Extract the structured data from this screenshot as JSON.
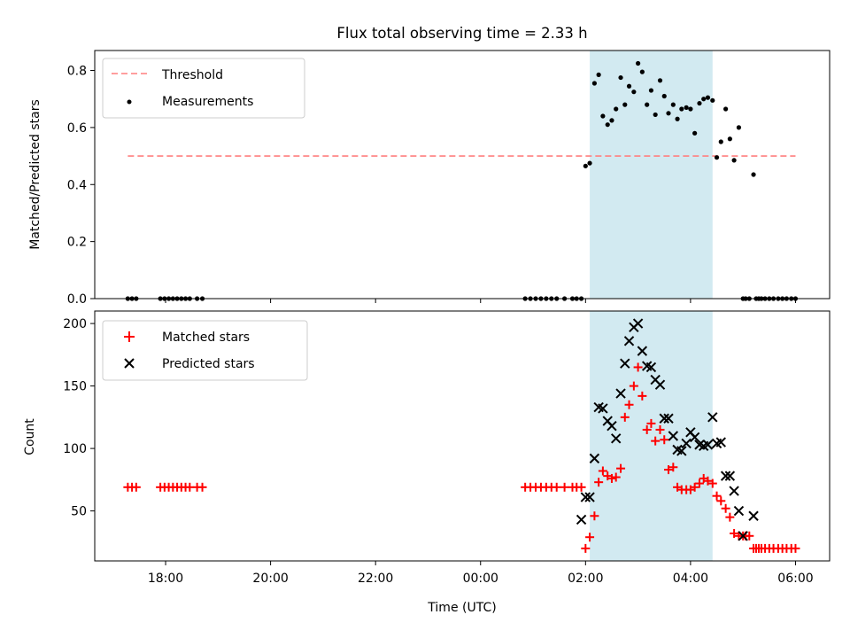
{
  "title": "Flux total observing time = 2.33 h",
  "colors": {
    "shade": "#add8e6",
    "threshold": "#ff7f7f",
    "measurements": "#000000",
    "matched": "#ff0000",
    "predicted": "#000000"
  },
  "chart_data": [
    {
      "type": "scatter",
      "panel": "top",
      "xlabel": "",
      "ylabel": "Matched/Predicted stars",
      "xlim_hours": [
        16.65,
        30.65
      ],
      "ylim": [
        0,
        0.87
      ],
      "yticks": [
        0.0,
        0.2,
        0.4,
        0.6,
        0.8
      ],
      "ytick_labels": [
        "0.0",
        "0.2",
        "0.4",
        "0.6",
        "0.8"
      ],
      "shaded_interval_hours": [
        26.08,
        28.42
      ],
      "legend": {
        "position": "upper-left",
        "entries": [
          "Threshold",
          "Measurements"
        ]
      },
      "threshold": {
        "name": "Threshold",
        "y": 0.5,
        "x_hours": [
          17.28,
          30.0
        ]
      },
      "series": [
        {
          "name": "Measurements",
          "marker": "dot",
          "x_hours": [
            17.28,
            17.36,
            17.44,
            17.9,
            17.98,
            18.06,
            18.14,
            18.22,
            18.3,
            18.38,
            18.46,
            18.6,
            18.7,
            24.85,
            24.95,
            25.05,
            25.15,
            25.25,
            25.35,
            25.45,
            25.6,
            25.75,
            25.83,
            25.92,
            26.0,
            26.08,
            26.17,
            26.25,
            26.33,
            26.42,
            26.5,
            26.58,
            26.67,
            26.75,
            26.83,
            26.92,
            27.0,
            27.08,
            27.17,
            27.25,
            27.33,
            27.42,
            27.5,
            27.58,
            27.67,
            27.75,
            27.83,
            27.92,
            28.0,
            28.08,
            28.17,
            28.25,
            28.33,
            28.42,
            28.5,
            28.58,
            28.67,
            28.75,
            28.83,
            28.92,
            29.0,
            29.05,
            29.12,
            29.2,
            29.25,
            29.3,
            29.35,
            29.42,
            29.5,
            29.58,
            29.67,
            29.75,
            29.83,
            29.92,
            30.0
          ],
          "y": [
            0,
            0,
            0,
            0,
            0,
            0,
            0,
            0,
            0,
            0,
            0,
            0,
            0,
            0,
            0,
            0,
            0,
            0,
            0,
            0,
            0,
            0,
            0,
            0,
            0.465,
            0.475,
            0.755,
            0.785,
            0.64,
            0.61,
            0.625,
            0.665,
            0.775,
            0.68,
            0.745,
            0.725,
            0.825,
            0.795,
            0.68,
            0.73,
            0.645,
            0.765,
            0.71,
            0.65,
            0.68,
            0.63,
            0.665,
            0.67,
            0.665,
            0.58,
            0.685,
            0.7,
            0.705,
            0.695,
            0.495,
            0.55,
            0.665,
            0.56,
            0.485,
            0.6,
            0,
            0,
            0,
            0.435,
            0,
            0,
            0,
            0,
            0,
            0,
            0,
            0,
            0,
            0,
            0
          ]
        }
      ]
    },
    {
      "type": "scatter",
      "panel": "bottom",
      "xlabel": "Time (UTC)",
      "ylabel": "Count",
      "xlim_hours": [
        16.65,
        30.65
      ],
      "ylim": [
        10,
        210
      ],
      "yticks": [
        50,
        100,
        150,
        200
      ],
      "ytick_labels": [
        "50",
        "100",
        "150",
        "200"
      ],
      "xticks_hours": [
        18,
        20,
        22,
        24,
        26,
        28,
        30
      ],
      "xtick_labels": [
        "18:00",
        "20:00",
        "22:00",
        "00:00",
        "02:00",
        "04:00",
        "06:00"
      ],
      "shaded_interval_hours": [
        26.08,
        28.42
      ],
      "legend": {
        "position": "upper-left",
        "entries": [
          "Matched stars",
          "Predicted stars"
        ]
      },
      "series": [
        {
          "name": "Matched stars",
          "marker": "plus",
          "x_hours": [
            17.28,
            17.36,
            17.44,
            17.9,
            17.98,
            18.06,
            18.14,
            18.22,
            18.3,
            18.38,
            18.46,
            18.6,
            18.7,
            24.85,
            24.95,
            25.05,
            25.15,
            25.25,
            25.35,
            25.45,
            25.6,
            25.75,
            25.83,
            25.92,
            26.0,
            26.08,
            26.17,
            26.25,
            26.33,
            26.42,
            26.5,
            26.58,
            26.67,
            26.75,
            26.83,
            26.92,
            27.0,
            27.08,
            27.17,
            27.25,
            27.33,
            27.42,
            27.5,
            27.58,
            27.67,
            27.75,
            27.83,
            27.92,
            28.0,
            28.08,
            28.17,
            28.25,
            28.33,
            28.42,
            28.5,
            28.58,
            28.67,
            28.75,
            28.83,
            28.92,
            29.0,
            29.05,
            29.12,
            29.2,
            29.25,
            29.3,
            29.35,
            29.42,
            29.5,
            29.58,
            29.67,
            29.75,
            29.83,
            29.92,
            30.0
          ],
          "y": [
            69,
            69,
            69,
            69,
            69,
            69,
            69,
            69,
            69,
            69,
            69,
            69,
            69,
            69,
            69,
            69,
            69,
            69,
            69,
            69,
            69,
            69,
            69,
            69,
            20,
            29,
            46,
            73,
            82,
            78,
            76,
            77,
            84,
            125,
            135,
            150,
            165,
            142,
            115,
            120,
            106,
            115,
            107,
            83,
            85,
            69,
            67,
            67,
            67,
            69,
            72,
            76,
            74,
            72,
            62,
            58,
            52,
            45,
            32,
            30,
            30,
            30,
            30,
            20,
            20,
            20,
            20,
            20,
            20,
            20,
            20,
            20,
            20,
            20,
            20
          ]
        },
        {
          "name": "Predicted stars",
          "marker": "x",
          "x_hours": [
            25.92,
            26.0,
            26.08,
            26.17,
            26.25,
            26.33,
            26.42,
            26.5,
            26.58,
            26.67,
            26.75,
            26.83,
            26.92,
            27.0,
            27.08,
            27.17,
            27.25,
            27.33,
            27.42,
            27.5,
            27.58,
            27.67,
            27.75,
            27.83,
            27.92,
            28.0,
            28.08,
            28.17,
            28.25,
            28.33,
            28.42,
            28.5,
            28.58,
            28.67,
            28.75,
            28.83,
            28.92,
            29.0,
            29.2
          ],
          "y": [
            43,
            61,
            61,
            92,
            133,
            132,
            122,
            118,
            108,
            144,
            168,
            186,
            197,
            200,
            178,
            166,
            165,
            155,
            151,
            124,
            124,
            110,
            99,
            98,
            104,
            113,
            109,
            103,
            102,
            103,
            125,
            104,
            105,
            78,
            78,
            66,
            50,
            30,
            46
          ]
        }
      ]
    }
  ]
}
